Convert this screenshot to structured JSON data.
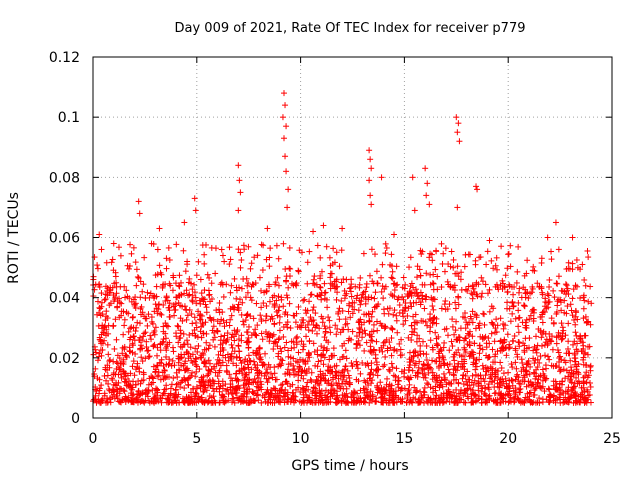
{
  "chart_data": {
    "type": "scatter",
    "title": "Day 009 of 2021, Rate Of TEC Index for receiver p779",
    "xlabel": "GPS time / hours",
    "ylabel": "ROTI / TECUs",
    "xlim": [
      0,
      25
    ],
    "ylim": [
      0,
      0.12
    ],
    "xticks": [
      0,
      5,
      10,
      15,
      20,
      25
    ],
    "xtick_labels": [
      "0",
      "5",
      "10",
      "15",
      "20",
      "25"
    ],
    "yticks": [
      0,
      0.02,
      0.04,
      0.06,
      0.08,
      0.1,
      0.12
    ],
    "ytick_labels": [
      "0",
      "0.02",
      "0.04",
      "0.06",
      "0.08",
      "0.1",
      "0.12"
    ],
    "grid": true,
    "marker": "plus",
    "color": "#ff0000",
    "bulk_x_range": [
      0,
      24
    ],
    "bulk_y_range": [
      0.005,
      0.045
    ],
    "series": [
      {
        "points": [
          [
            9.2,
            0.108
          ],
          [
            9.25,
            0.104
          ],
          [
            9.15,
            0.1
          ],
          [
            9.3,
            0.097
          ],
          [
            9.2,
            0.093
          ],
          [
            9.25,
            0.087
          ],
          [
            9.3,
            0.082
          ],
          [
            9.4,
            0.076
          ],
          [
            9.35,
            0.07
          ],
          [
            17.5,
            0.1
          ],
          [
            17.6,
            0.098
          ],
          [
            17.55,
            0.095
          ],
          [
            17.65,
            0.092
          ],
          [
            17.55,
            0.07
          ],
          [
            13.3,
            0.089
          ],
          [
            13.35,
            0.086
          ],
          [
            13.4,
            0.083
          ],
          [
            13.3,
            0.079
          ],
          [
            13.35,
            0.074
          ],
          [
            13.4,
            0.071
          ],
          [
            13.9,
            0.08
          ],
          [
            15.4,
            0.08
          ],
          [
            15.5,
            0.069
          ],
          [
            16.0,
            0.083
          ],
          [
            16.1,
            0.078
          ],
          [
            16.05,
            0.074
          ],
          [
            16.2,
            0.071
          ],
          [
            18.5,
            0.076
          ],
          [
            18.45,
            0.077
          ],
          [
            7.0,
            0.084
          ],
          [
            7.05,
            0.079
          ],
          [
            7.1,
            0.075
          ],
          [
            7.0,
            0.069
          ],
          [
            4.9,
            0.073
          ],
          [
            4.95,
            0.069
          ],
          [
            2.2,
            0.072
          ],
          [
            2.25,
            0.068
          ],
          [
            0.3,
            0.061
          ],
          [
            22.3,
            0.065
          ],
          [
            11.1,
            0.064
          ],
          [
            12.0,
            0.063
          ],
          [
            10.6,
            0.062
          ],
          [
            21.9,
            0.06
          ],
          [
            23.1,
            0.06
          ],
          [
            4.4,
            0.065
          ],
          [
            3.2,
            0.063
          ],
          [
            19.1,
            0.059
          ],
          [
            1.0,
            0.058
          ],
          [
            14.5,
            0.061
          ],
          [
            6.2,
            0.056
          ],
          [
            8.4,
            0.063
          ]
        ]
      }
    ]
  }
}
